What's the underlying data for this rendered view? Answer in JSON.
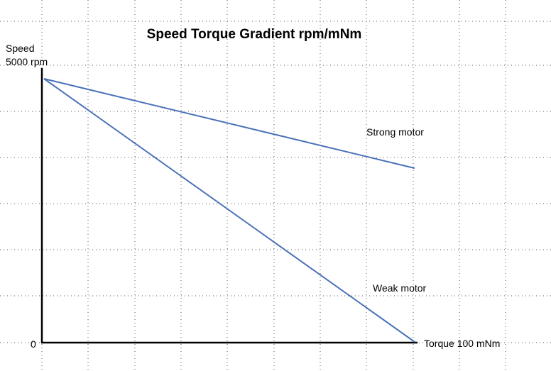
{
  "chart_data": {
    "type": "line",
    "title": "Speed Torque Gradient rpm/mNm",
    "ylabel_line1": "Speed",
    "ylabel_line2": "5000 rpm",
    "xlabel": "Torque 100 mNm",
    "y_zero_label": "0",
    "xlim": [
      0,
      100
    ],
    "ylim": [
      0,
      5000
    ],
    "grid": true,
    "series": [
      {
        "name": "Strong motor",
        "x": [
          0,
          100
        ],
        "y": [
          5000,
          3300
        ],
        "color": "#4a72b8"
      },
      {
        "name": "Weak motor",
        "x": [
          0,
          100
        ],
        "y": [
          5000,
          0
        ],
        "color": "#4a72b8"
      }
    ]
  }
}
